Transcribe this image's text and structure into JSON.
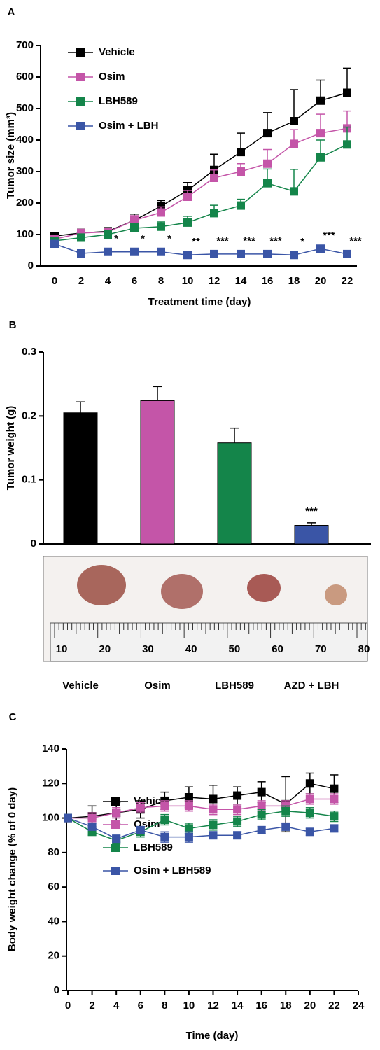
{
  "chart_data": [
    {
      "type": "line",
      "panel": "A",
      "xlabel": "Treatment time (day)",
      "ylabel": "Tumor size (mm³)",
      "x": [
        0,
        2,
        4,
        6,
        8,
        10,
        12,
        14,
        16,
        18,
        20,
        22
      ],
      "xlim": [
        0,
        22
      ],
      "xticks": [
        0,
        2,
        4,
        6,
        8,
        10,
        12,
        14,
        16,
        18,
        20,
        22
      ],
      "ylim": [
        0,
        700
      ],
      "yticks": [
        0,
        100,
        200,
        300,
        400,
        500,
        600,
        700
      ],
      "error_direction": "up",
      "series": [
        {
          "name": "Vehicle",
          "color": "#000000",
          "values": [
            95,
            105,
            110,
            145,
            190,
            240,
            305,
            362,
            422,
            460,
            525,
            550
          ],
          "errors": [
            10,
            12,
            12,
            20,
            18,
            25,
            50,
            60,
            65,
            100,
            65,
            78
          ]
        },
        {
          "name": "Osim",
          "color": "#c455a8",
          "values": [
            85,
            105,
            108,
            145,
            170,
            220,
            280,
            300,
            325,
            388,
            422,
            437
          ],
          "errors": [
            8,
            10,
            10,
            15,
            18,
            20,
            25,
            25,
            45,
            45,
            60,
            55
          ]
        },
        {
          "name": "LBH589",
          "color": "#14854a",
          "values": [
            80,
            90,
            100,
            120,
            125,
            138,
            168,
            192,
            263,
            237,
            345,
            386
          ],
          "errors": [
            8,
            12,
            12,
            15,
            15,
            20,
            25,
            20,
            45,
            70,
            55,
            55
          ]
        },
        {
          "name": "Osim + LBH",
          "color": "#3a55a6",
          "values": [
            70,
            40,
            45,
            45,
            45,
            35,
            38,
            38,
            38,
            35,
            55,
            38
          ],
          "errors": [
            5,
            5,
            5,
            5,
            5,
            5,
            5,
            5,
            5,
            5,
            5,
            5
          ],
          "significance": [
            null,
            null,
            "*",
            "*",
            "*",
            "**",
            "***",
            "***",
            "***",
            "*",
            "***",
            "***"
          ]
        }
      ]
    },
    {
      "type": "bar",
      "panel": "B",
      "ylabel": "Tumor weight (g)",
      "categories": [
        "Vehicle",
        "Osim",
        "LBH589",
        "AZD + LBH"
      ],
      "values": [
        0.205,
        0.224,
        0.158,
        0.029
      ],
      "errors": [
        0.017,
        0.022,
        0.023,
        0.004
      ],
      "colors": [
        "#000000",
        "#c455a8",
        "#14854a",
        "#3a55a6"
      ],
      "significance": [
        null,
        null,
        null,
        "***"
      ],
      "error_direction": "up",
      "ylim": [
        0,
        0.3
      ],
      "yticks": [
        0,
        0.1,
        0.2,
        0.3
      ],
      "ruler_labels": [
        "10",
        "20",
        "30",
        "40",
        "50",
        "60",
        "70",
        "80"
      ]
    },
    {
      "type": "line",
      "panel": "C",
      "xlabel": "Time (day)",
      "ylabel": "Body weight change (% of 0 day)",
      "x": [
        0,
        2,
        4,
        6,
        8,
        10,
        12,
        14,
        16,
        18,
        20,
        22
      ],
      "xlim": [
        0,
        24
      ],
      "xticks": [
        0,
        2,
        4,
        6,
        8,
        10,
        12,
        14,
        16,
        18,
        20,
        22,
        24
      ],
      "ylim": [
        0,
        140
      ],
      "yticks": [
        0,
        20,
        40,
        60,
        80,
        100,
        120,
        140
      ],
      "error_direction": "both",
      "series": [
        {
          "name": "Vehicle",
          "color": "#000000",
          "values": [
            100,
            101,
            103,
            105,
            110,
            112,
            111,
            113,
            115,
            108,
            120,
            117
          ],
          "errors": [
            0,
            6,
            6,
            5,
            5,
            6,
            8,
            5,
            6,
            16,
            6,
            8
          ]
        },
        {
          "name": "Osim",
          "color": "#c455a8",
          "values": [
            100,
            100,
            103,
            106,
            107,
            107,
            105,
            105,
            107,
            107,
            111,
            111
          ],
          "errors": [
            0,
            3,
            3,
            3,
            3,
            3,
            3,
            3,
            3,
            3,
            3,
            3
          ]
        },
        {
          "name": "LBH589",
          "color": "#14854a",
          "values": [
            100,
            92,
            87,
            92,
            99,
            94,
            96,
            98,
            102,
            104,
            103,
            101
          ],
          "errors": [
            0,
            2,
            2,
            3,
            3,
            3,
            3,
            3,
            3,
            3,
            3,
            3
          ]
        },
        {
          "name": "Osim + LBH589",
          "color": "#3a55a6",
          "values": [
            100,
            95,
            88,
            93,
            89,
            89,
            90,
            90,
            93,
            95,
            92,
            94
          ],
          "errors": [
            0,
            2,
            2,
            2,
            3,
            3,
            2,
            2,
            2,
            2,
            2,
            2
          ]
        }
      ]
    }
  ]
}
